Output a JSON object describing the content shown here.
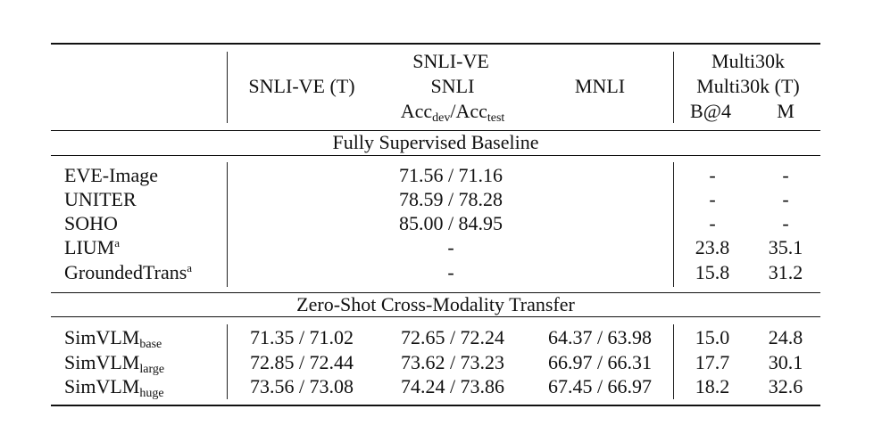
{
  "header": {
    "col_snlive_t": "SNLI-VE (T)",
    "group_line1": "SNLI-VE",
    "group_line2": "SNLI",
    "acc_prefix": "Acc",
    "acc_dev_sub": "dev",
    "acc_sep": "/Acc",
    "acc_test_sub": "test",
    "col_mnli": "MNLI",
    "multi_line1": "Multi30k",
    "multi_line2": "Multi30k (T)",
    "col_b4": "B@4",
    "col_m": "M"
  },
  "sections": {
    "fully_supervised": "Fully Supervised Baseline",
    "zero_shot": "Zero-Shot Cross-Modality Transfer"
  },
  "supervised_rows": [
    {
      "model": "EVE-Image",
      "sup": "",
      "snli": "71.56 / 71.16",
      "b4": "-",
      "m": "-"
    },
    {
      "model": "UNITER",
      "sup": "",
      "snli": "78.59 / 78.28",
      "b4": "-",
      "m": "-"
    },
    {
      "model": "SOHO",
      "sup": "",
      "snli": "85.00 / 84.95",
      "b4": "-",
      "m": "-"
    },
    {
      "model": "LIUM",
      "sup": "a",
      "snli": "-",
      "b4": "23.8",
      "m": "35.1"
    },
    {
      "model": "GroundedTrans",
      "sup": "a",
      "snli": "-",
      "b4": "15.8",
      "m": "31.2"
    }
  ],
  "zeroshot_rows": [
    {
      "model": "SimVLM",
      "sub": "base",
      "snlive_t": "71.35 / 71.02",
      "snli": "72.65 / 72.24",
      "mnli": "64.37 / 63.98",
      "b4": "15.0",
      "m": "24.8"
    },
    {
      "model": "SimVLM",
      "sub": "large",
      "snlive_t": "72.85 / 72.44",
      "snli": "73.62 / 73.23",
      "mnli": "66.97 / 66.31",
      "b4": "17.7",
      "m": "30.1"
    },
    {
      "model": "SimVLM",
      "sub": "huge",
      "snlive_t": "73.56 / 73.08",
      "snli": "74.24 / 73.86",
      "mnli": "67.45 / 66.97",
      "b4": "18.2",
      "m": "32.6"
    }
  ]
}
